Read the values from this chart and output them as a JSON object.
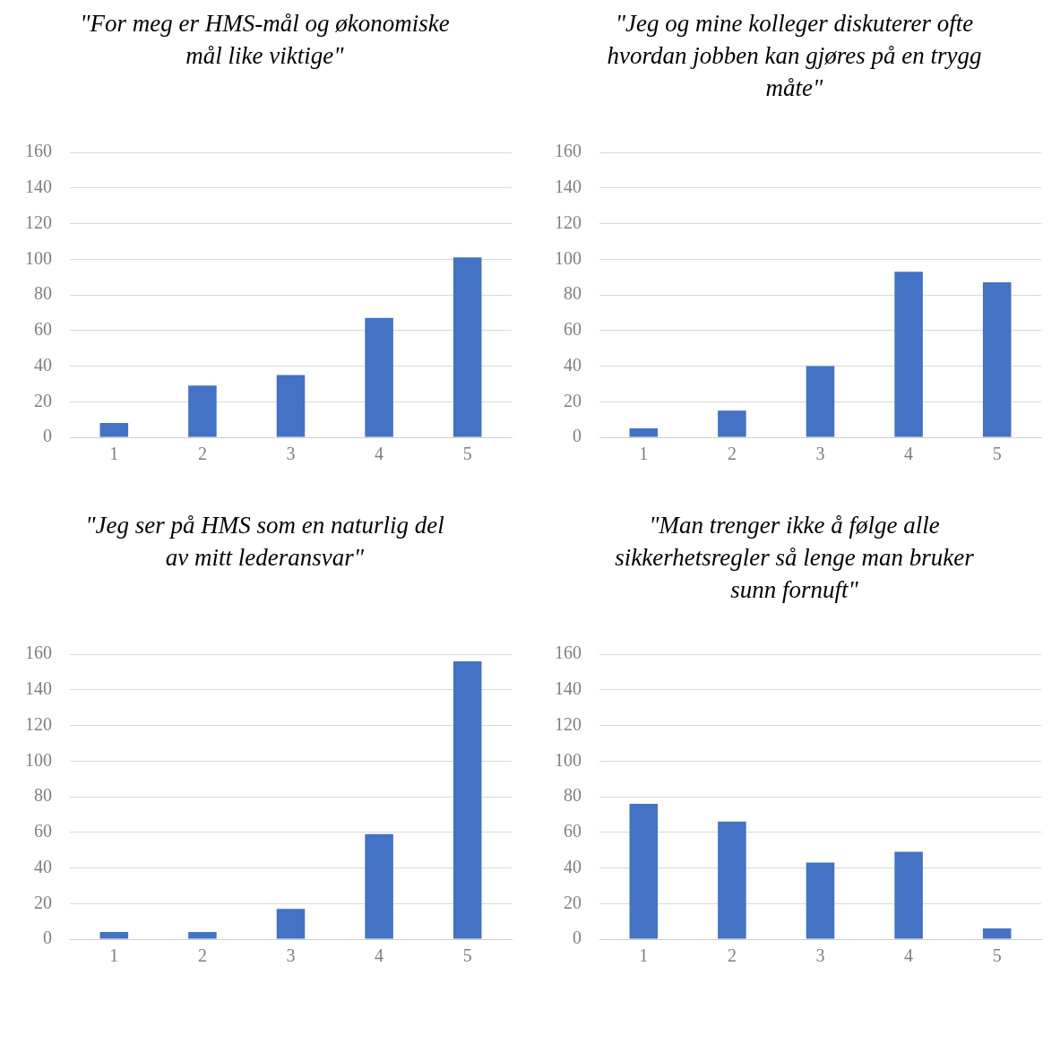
{
  "chart_data": [
    {
      "type": "bar",
      "title": "\"For meg er HMS-mål og økonomiske mål like viktige\"",
      "categories": [
        "1",
        "2",
        "3",
        "4",
        "5"
      ],
      "values": [
        8,
        29,
        35,
        67,
        101
      ],
      "color": "#4472c4",
      "ylim": [
        0,
        160
      ],
      "yticks": [
        0,
        20,
        40,
        60,
        80,
        100,
        120,
        140,
        160
      ],
      "grid": "y"
    },
    {
      "type": "bar",
      "title": "\"Jeg og mine kolleger diskuterer ofte hvordan jobben kan gjøres på en trygg måte\"",
      "categories": [
        "1",
        "2",
        "3",
        "4",
        "5"
      ],
      "values": [
        5,
        15,
        40,
        93,
        87
      ],
      "color": "#4472c4",
      "ylim": [
        0,
        160
      ],
      "yticks": [
        0,
        20,
        40,
        60,
        80,
        100,
        120,
        140,
        160
      ],
      "grid": "y"
    },
    {
      "type": "bar",
      "title": "\"Jeg ser på HMS som en naturlig del av mitt lederansvar\"",
      "categories": [
        "1",
        "2",
        "3",
        "4",
        "5"
      ],
      "values": [
        4,
        4,
        17,
        59,
        156
      ],
      "color": "#4472c4",
      "ylim": [
        0,
        160
      ],
      "yticks": [
        0,
        20,
        40,
        60,
        80,
        100,
        120,
        140,
        160
      ],
      "grid": "y"
    },
    {
      "type": "bar",
      "title": "\"Man trenger ikke å følge alle sikkerhetsregler så lenge man bruker sunn fornuft\"",
      "categories": [
        "1",
        "2",
        "3",
        "4",
        "5"
      ],
      "values": [
        76,
        66,
        43,
        49,
        6
      ],
      "color": "#4472c4",
      "ylim": [
        0,
        160
      ],
      "yticks": [
        0,
        20,
        40,
        60,
        80,
        100,
        120,
        140,
        160
      ],
      "grid": "y"
    }
  ]
}
